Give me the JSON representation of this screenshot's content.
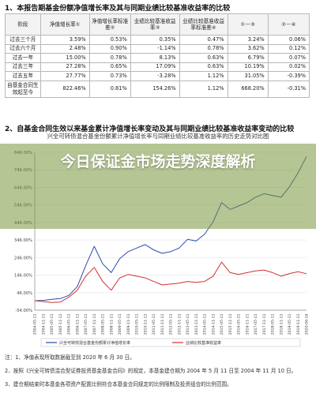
{
  "section1_title": "1、本报告期基金份额净值增长率及其与同期业绩比较基准收益率的比较",
  "table": {
    "headers": [
      "阶段",
      "净值增长率①",
      "净值增长率标准差②",
      "业绩比较基准收益率③",
      "业绩比较基准收益率标准差④",
      "①－③",
      "②－④"
    ],
    "rows": [
      [
        "过去三个月",
        "3.59%",
        "0.53%",
        "0.35%",
        "0.47%",
        "3.24%",
        "0.06%"
      ],
      [
        "过去六个月",
        "2.48%",
        "0.90%",
        "-1.14%",
        "0.78%",
        "3.62%",
        "0.12%"
      ],
      [
        "过去一年",
        "15.00%",
        "0.78%",
        "8.13%",
        "0.63%",
        "6.79%",
        "0.07%"
      ],
      [
        "过去三年",
        "27.28%",
        "0.65%",
        "17.09%",
        "0.63%",
        "10.19%",
        "0.02%"
      ],
      [
        "过去五年",
        "27.77%",
        "0.73%",
        "-3.28%",
        "1.12%",
        "31.05%",
        "-0.39%"
      ],
      [
        "自基金合同生效起至今",
        "822.46%",
        "0.81%",
        "154.26%",
        "1.12%",
        "668.20%",
        "-0.31%"
      ]
    ]
  },
  "section2_title": "2、自基金合同生效以来基金累计净值增长率变动及其与同期业绩比较基准收益率变动的比较",
  "chart_title": "兴全可转债混合基金份额累计净值增长率与同期业绩比较基准收益率的历史走势对比图",
  "banner_title": "今日保证金市场走势深度解析",
  "chart_data": {
    "type": "line",
    "title": "兴全可转债混合基金份额累计净值增长率与同期业绩比较基准收益率的历史走势对比图",
    "x_ticks": [
      "2004-05-11",
      "2004-11-11",
      "2005-05-11",
      "2005-11-11",
      "2006-05-11",
      "2006-11-11",
      "2007-05-11",
      "2007-11-11",
      "2008-05-11",
      "2008-11-11",
      "2009-05-11",
      "2009-11-11",
      "2010-05-11",
      "2010-11-11",
      "2011-05-11",
      "2011-11-11",
      "2012-05-11",
      "2012-11-11",
      "2013-05-11",
      "2013-11-11",
      "2014-05-11",
      "2014-11-11",
      "2015-05-11",
      "2015-11-11",
      "2016-05-11",
      "2016-11-11",
      "2017-05-11",
      "2017-11-11",
      "2018-05-11",
      "2018-11-11",
      "2019-05-11",
      "2019-11-11",
      "2020-06-16"
    ],
    "y_ticks": [
      "-54.00%",
      "46.00%",
      "146.00%",
      "246.00%",
      "346.00%",
      "446.00%",
      "546.00%",
      "646.00%",
      "746.00%",
      "846.00%"
    ],
    "ylim": [
      -54,
      846
    ],
    "series": [
      {
        "name": "兴全可转债混合基金份额累计净值增长率",
        "color": "#2b4aa8",
        "x": [
          0,
          1,
          2,
          3,
          4,
          5,
          6,
          7,
          8,
          9,
          10,
          11,
          12,
          13,
          14,
          15,
          16,
          17,
          18,
          19,
          20,
          21,
          22,
          23,
          24,
          25,
          26,
          27,
          28,
          29,
          30,
          31,
          32
        ],
        "values": [
          0,
          2,
          8,
          12,
          30,
          80,
          200,
          310,
          210,
          160,
          240,
          280,
          300,
          320,
          290,
          270,
          280,
          300,
          350,
          340,
          380,
          450,
          560,
          520,
          540,
          560,
          590,
          610,
          600,
          590,
          650,
          730,
          822
        ]
      },
      {
        "name": "业绩比较基准收益率",
        "color": "#d23030",
        "x": [
          0,
          1,
          2,
          3,
          4,
          5,
          6,
          7,
          8,
          9,
          10,
          11,
          12,
          13,
          14,
          15,
          16,
          17,
          18,
          19,
          20,
          21,
          22,
          23,
          24,
          25,
          26,
          27,
          28,
          29,
          30,
          31,
          32
        ],
        "values": [
          0,
          -5,
          -10,
          -8,
          20,
          60,
          140,
          190,
          110,
          60,
          130,
          150,
          140,
          130,
          110,
          90,
          95,
          100,
          110,
          105,
          110,
          140,
          220,
          160,
          150,
          160,
          170,
          175,
          160,
          140,
          155,
          165,
          154
        ]
      }
    ],
    "legend_position": "bottom"
  },
  "notes": [
    "注：1、净值表现所取数据截至到 2020 年 6 月 30 日。",
    "2、按照《兴全可转债混合型证券投资基金基金合同》的规定，本基金建仓期为 2004 年 5 月 11 日至 2004 年 11 月 10 日。",
    "3、建仓期结束时本基金各项资产配置比例符合本基金合同规定的比例限制及投资组合的比例范围。"
  ]
}
